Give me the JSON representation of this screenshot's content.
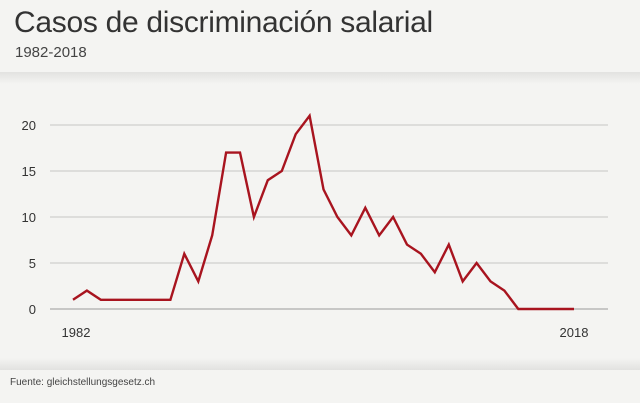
{
  "header": {
    "title": "Casos de discriminación salarial",
    "subtitle": "1982-2018"
  },
  "source": "Fuente: gleichstellungsgesetz.ch",
  "chart_data": {
    "type": "line",
    "title": "Casos de discriminación salarial",
    "subtitle": "1982-2018",
    "xlabel": "",
    "ylabel": "",
    "x_tick_labels": [
      "1982",
      "2018"
    ],
    "y_ticks": [
      0,
      5,
      10,
      15,
      20
    ],
    "xlim": [
      1982,
      2018
    ],
    "ylim": [
      0,
      20
    ],
    "grid": true,
    "legend": "none",
    "line_color": "#a8141f",
    "series": [
      {
        "x": [
          1982,
          1983,
          1984,
          1985,
          1986,
          1987,
          1988,
          1989,
          1990,
          1991,
          1992,
          1993,
          1994,
          1995,
          1996,
          1997,
          1998,
          1999,
          2000,
          2001,
          2002,
          2003,
          2004,
          2005,
          2006,
          2007,
          2008,
          2009,
          2010,
          2011,
          2012,
          2013,
          2014,
          2015,
          2016,
          2017,
          2018
        ],
        "values": [
          1,
          2,
          1,
          1,
          1,
          1,
          1,
          1,
          6,
          3,
          8,
          17,
          17,
          10,
          14,
          15,
          19,
          21,
          13,
          10,
          8,
          11,
          8,
          10,
          7,
          6,
          4,
          7,
          3,
          5,
          3,
          2,
          0,
          0,
          0,
          0,
          0
        ]
      }
    ]
  }
}
